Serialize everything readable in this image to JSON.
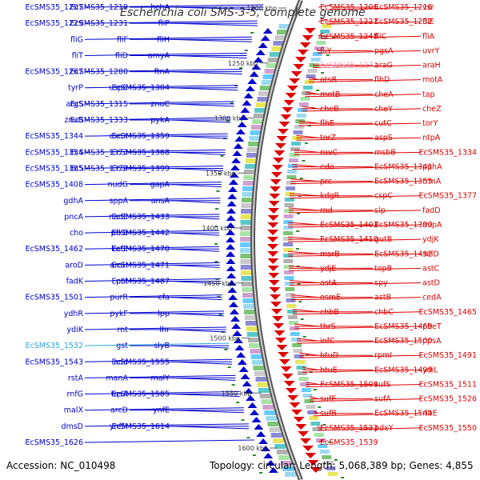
{
  "title": "Escherichia coli SMS-3-5, complete genome",
  "accession_label": "Accession: NC_010498",
  "summary_label": "Topology: circular; Length: 5,068,389 bp; Genes: 4,855",
  "colors": {
    "forward": "#0000cc",
    "reverse": "#dd0000",
    "highlight_left": "#2aa7e0",
    "highlight_right": "#f5a3c7",
    "backbone": "#808080"
  },
  "scale_marks": [
    "1200 kbp",
    "1250 kbp",
    "1300 kbp",
    "1350 kbp",
    "1400 kbp",
    "1450 kbp",
    "1500 kbp",
    "1550 kbp",
    "1600 kbp"
  ],
  "left_labels": [
    "EcSMS35_1207",
    "EcSMS35_1219",
    "hchA",
    "EcSMS35_1229",
    "EcSMS35_1231",
    "fliP",
    "fliG",
    "fliF",
    "fliH",
    "fliT",
    "fliD",
    "amyA",
    "EcSMS35_1267",
    "EcSMS35_1280",
    "ftnA",
    "tyrP",
    "uspC",
    "EcSMS35_1304",
    "argS",
    "EcSMS35_1315",
    "znuC",
    "znuB",
    "EcSMS35_1333",
    "pykA",
    "EcSMS35_1344",
    "exoX",
    "EcSMS35_1359",
    "EcSMS35_1354",
    "EcSMS35_1373",
    "EcSMS35_1368",
    "EcSMS35_1385",
    "EcSMS35_1379",
    "EcSMS35_1399",
    "EcSMS35_1408",
    "nudG",
    "gapA",
    "gdhA",
    "sppA",
    "ansA",
    "pncA",
    "nadE",
    "EcSMS35_1433",
    "cho",
    "pfkB",
    "EcSMS35_1442",
    "EcSMS35_1462",
    "katE",
    "EcSMS35_1470",
    "aroD",
    "aroH",
    "EcSMS35_1471",
    "fadK",
    "pct",
    "EcSMS35_1487",
    "EcSMS35_1501",
    "purR",
    "cfa",
    "ydhR",
    "pykF",
    "lpp",
    "ydiK",
    "rnt",
    "lhr",
    "EcSMS35_1532",
    "gst",
    "slyB",
    "EcSMS35_1543",
    "add",
    "EcSMS35_1555",
    "rstA",
    "manA",
    "malY",
    "rnfG",
    "tqsA",
    "EcSMS35_1585",
    "malX",
    "arcD",
    "ynfE",
    "dmsD",
    "ynfM",
    "EcSMS35_1614",
    "EcSMS35_1626"
  ],
  "right_labels": [
    "EcSMS35_1206",
    "EcSMS35_1216",
    "vsr",
    "EcSMS35_1227",
    "EcSMS35_1232",
    "fliE",
    "EcSMS35_1248",
    "fliC",
    "fliA",
    "fliY",
    "pgsA",
    "uvrY",
    "EcSMS35_1272",
    "araG",
    "araH",
    "otsB",
    "flhD",
    "motA",
    "motB",
    "cheA",
    "tap",
    "cheB",
    "cheY",
    "cheZ",
    "flhE",
    "cutC",
    "torY",
    "torZ",
    "aspS",
    "ntpA",
    "ruvC",
    "msbB",
    "EcSMS35_1334",
    "eda",
    "EcSMS35_1341",
    "pphA",
    "prc",
    "EcSMS35_1355",
    "rrmA",
    "kdgR",
    "cspC",
    "EcSMS35_1377",
    "rnd",
    "slp",
    "fadD",
    "EcSMS35_1403",
    "EcSMS35_1390",
    "mipA",
    "EcSMS35_1410",
    "gutB",
    "ydjK",
    "msrB",
    "EcSMS35_1432",
    "selD",
    "ydjE",
    "topB",
    "astC",
    "astA",
    "spy",
    "astD",
    "osmE",
    "astB",
    "cedA",
    "chbB",
    "chbC",
    "EcSMS35_1465",
    "thrS",
    "EcSMS35_1469",
    "pheT",
    "infC",
    "EcSMS35_1500",
    "ppsA",
    "btuD",
    "rpmI",
    "EcSMS35_1491",
    "btuE",
    "EcSMS35_1499",
    "ydiL",
    "EcSMS35_1509",
    "sufS",
    "EcSMS35_1511",
    "sufE",
    "sufA",
    "EcSMS35_1526",
    "sufB",
    "EcSMS35_1544",
    "ribE",
    "EcSMS35_1533",
    "pdxY",
    "EcSMS35_1550",
    "EcSMS35_1539"
  ]
}
